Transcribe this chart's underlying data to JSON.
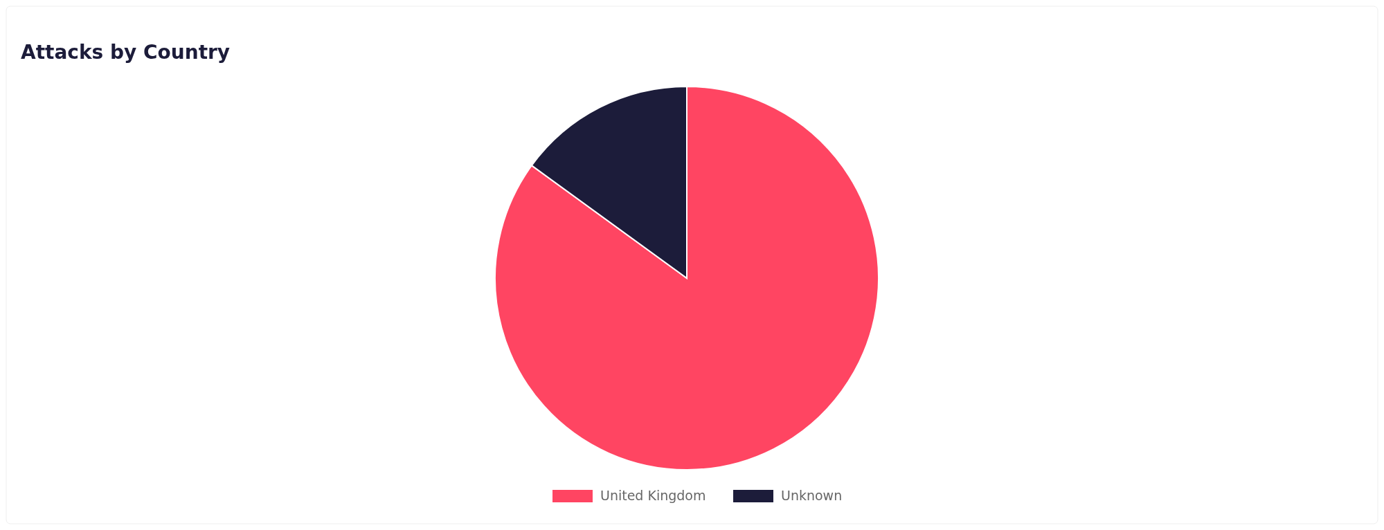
{
  "chart_data": {
    "type": "pie",
    "title": "Attacks by Country",
    "categories": [
      "United Kingdom",
      "Unknown"
    ],
    "values": [
      85,
      15
    ],
    "colors": [
      "#ff4562",
      "#1c1c3a"
    ],
    "legend": "bottom"
  }
}
